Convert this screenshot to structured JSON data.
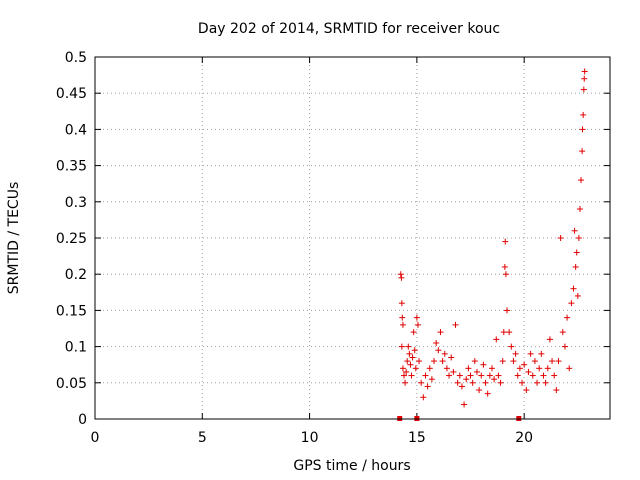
{
  "chart_data": {
    "type": "scatter",
    "title": "Day 202 of 2014, SRMTID for receiver kouc",
    "xlabel": "GPS time / hours",
    "ylabel": "SRMTID / TECUs",
    "xlim": [
      0,
      24
    ],
    "ylim": [
      0,
      0.5
    ],
    "x_ticks": [
      "0",
      "5",
      "10",
      "15",
      "20"
    ],
    "x_tick_values": [
      0,
      5,
      10,
      15,
      20
    ],
    "y_ticks": [
      "0",
      "0.05",
      "0.1",
      "0.15",
      "0.2",
      "0.25",
      "0.3",
      "0.35",
      "0.4",
      "0.45",
      "0.5"
    ],
    "y_tick_values": [
      0,
      0.05,
      0.1,
      0.15,
      0.2,
      0.25,
      0.3,
      0.35,
      0.4,
      0.45,
      0.5
    ],
    "grid": true,
    "marker": "plus",
    "color": "#e00000",
    "zero_markers_x": [
      14.2,
      15.0,
      19.75
    ],
    "series": [
      {
        "name": "",
        "points": [
          [
            14.25,
            0.2
          ],
          [
            14.28,
            0.195
          ],
          [
            14.3,
            0.16
          ],
          [
            14.32,
            0.14
          ],
          [
            14.35,
            0.13
          ],
          [
            14.3,
            0.1
          ],
          [
            14.35,
            0.07
          ],
          [
            14.4,
            0.06
          ],
          [
            14.45,
            0.05
          ],
          [
            14.5,
            0.065
          ],
          [
            14.55,
            0.08
          ],
          [
            14.6,
            0.1
          ],
          [
            14.65,
            0.09
          ],
          [
            14.7,
            0.075
          ],
          [
            14.75,
            0.06
          ],
          [
            14.8,
            0.085
          ],
          [
            14.85,
            0.12
          ],
          [
            14.9,
            0.095
          ],
          [
            14.95,
            0.07
          ],
          [
            15.0,
            0.14
          ],
          [
            15.05,
            0.13
          ],
          [
            15.1,
            0.08
          ],
          [
            15.2,
            0.05
          ],
          [
            15.3,
            0.03
          ],
          [
            15.4,
            0.06
          ],
          [
            15.5,
            0.045
          ],
          [
            15.6,
            0.07
          ],
          [
            15.7,
            0.055
          ],
          [
            15.8,
            0.08
          ],
          [
            15.9,
            0.105
          ],
          [
            16.0,
            0.095
          ],
          [
            16.1,
            0.12
          ],
          [
            16.2,
            0.08
          ],
          [
            16.3,
            0.09
          ],
          [
            16.4,
            0.07
          ],
          [
            16.5,
            0.06
          ],
          [
            16.6,
            0.085
          ],
          [
            16.7,
            0.065
          ],
          [
            16.8,
            0.13
          ],
          [
            16.9,
            0.05
          ],
          [
            17.0,
            0.06
          ],
          [
            17.1,
            0.045
          ],
          [
            17.2,
            0.02
          ],
          [
            17.3,
            0.055
          ],
          [
            17.4,
            0.07
          ],
          [
            17.5,
            0.06
          ],
          [
            17.6,
            0.05
          ],
          [
            17.7,
            0.08
          ],
          [
            17.8,
            0.065
          ],
          [
            17.9,
            0.04
          ],
          [
            18.0,
            0.06
          ],
          [
            18.1,
            0.075
          ],
          [
            18.2,
            0.05
          ],
          [
            18.3,
            0.035
          ],
          [
            18.4,
            0.06
          ],
          [
            18.5,
            0.07
          ],
          [
            18.6,
            0.055
          ],
          [
            18.7,
            0.11
          ],
          [
            18.8,
            0.06
          ],
          [
            18.9,
            0.05
          ],
          [
            19.0,
            0.08
          ],
          [
            19.05,
            0.12
          ],
          [
            19.1,
            0.21
          ],
          [
            19.12,
            0.245
          ],
          [
            19.15,
            0.2
          ],
          [
            19.2,
            0.15
          ],
          [
            19.3,
            0.12
          ],
          [
            19.4,
            0.1
          ],
          [
            19.5,
            0.08
          ],
          [
            19.6,
            0.09
          ],
          [
            19.7,
            0.06
          ],
          [
            19.8,
            0.07
          ],
          [
            19.9,
            0.05
          ],
          [
            20.0,
            0.075
          ],
          [
            20.1,
            0.04
          ],
          [
            20.2,
            0.065
          ],
          [
            20.3,
            0.09
          ],
          [
            20.4,
            0.06
          ],
          [
            20.5,
            0.08
          ],
          [
            20.6,
            0.05
          ],
          [
            20.7,
            0.07
          ],
          [
            20.8,
            0.09
          ],
          [
            20.9,
            0.06
          ],
          [
            21.0,
            0.05
          ],
          [
            21.1,
            0.07
          ],
          [
            21.2,
            0.11
          ],
          [
            21.3,
            0.08
          ],
          [
            21.4,
            0.06
          ],
          [
            21.5,
            0.04
          ],
          [
            21.6,
            0.08
          ],
          [
            21.7,
            0.25
          ],
          [
            21.8,
            0.12
          ],
          [
            21.9,
            0.1
          ],
          [
            22.0,
            0.14
          ],
          [
            22.1,
            0.07
          ],
          [
            22.2,
            0.16
          ],
          [
            22.3,
            0.18
          ],
          [
            22.35,
            0.26
          ],
          [
            22.4,
            0.21
          ],
          [
            22.45,
            0.23
          ],
          [
            22.5,
            0.17
          ],
          [
            22.55,
            0.25
          ],
          [
            22.6,
            0.29
          ],
          [
            22.65,
            0.33
          ],
          [
            22.7,
            0.37
          ],
          [
            22.72,
            0.4
          ],
          [
            22.75,
            0.42
          ],
          [
            22.78,
            0.455
          ],
          [
            22.8,
            0.47
          ],
          [
            22.82,
            0.48
          ]
        ]
      }
    ]
  }
}
